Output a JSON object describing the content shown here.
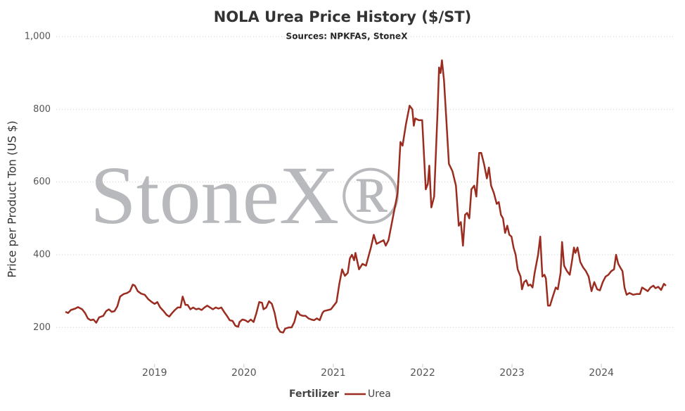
{
  "chart_data": {
    "type": "line",
    "title": "NOLA Urea Price History ($/ST)",
    "subtitle": "Sources: NPKFAS, StoneX",
    "y_label": "Price per Product Ton (US $)",
    "watermark": "StoneX®",
    "legend_title": "Fertilizer",
    "x": [
      2018.002,
      2018.033,
      2018.064,
      2018.112,
      2018.143,
      2018.19,
      2018.222,
      2018.253,
      2018.285,
      2018.316,
      2018.347,
      2018.379,
      2018.426,
      2018.458,
      2018.489,
      2018.52,
      2018.552,
      2018.583,
      2018.615,
      2018.654,
      2018.693,
      2018.725,
      2018.756,
      2018.78,
      2018.811,
      2018.851,
      2018.89,
      2018.929,
      2018.969,
      2019.0,
      2019.031,
      2019.063,
      2019.102,
      2019.134,
      2019.165,
      2019.197,
      2019.228,
      2019.259,
      2019.291,
      2019.314,
      2019.346,
      2019.37,
      2019.401,
      2019.432,
      2019.464,
      2019.495,
      2019.527,
      2019.558,
      2019.59,
      2019.621,
      2019.653,
      2019.684,
      2019.715,
      2019.747,
      2019.778,
      2019.81,
      2019.841,
      2019.873,
      2019.904,
      2019.936,
      2019.951,
      2019.983,
      2020.014,
      2020.046,
      2020.077,
      2020.108,
      2020.14,
      2020.171,
      2020.203,
      2020.219,
      2020.25,
      2020.281,
      2020.313,
      2020.344,
      2020.376,
      2020.407,
      2020.439,
      2020.462,
      2020.502,
      2020.533,
      2020.564,
      2020.596,
      2020.627,
      2020.659,
      2020.69,
      2020.722,
      2020.753,
      2020.785,
      2020.816,
      2020.848,
      2020.879,
      2020.895,
      2020.973,
      2021.036,
      2021.068,
      2021.099,
      2021.13,
      2021.162,
      2021.186,
      2021.209,
      2021.233,
      2021.248,
      2021.288,
      2021.327,
      2021.366,
      2021.421,
      2021.453,
      2021.484,
      2021.524,
      2021.563,
      2021.587,
      2021.618,
      2021.681,
      2021.72,
      2021.752,
      2021.775,
      2021.814,
      2021.854,
      2021.885,
      2021.901,
      2021.917,
      2021.956,
      2021.995,
      2022.035,
      2022.058,
      2022.074,
      2022.097,
      2022.129,
      2022.168,
      2022.184,
      2022.2,
      2022.216,
      2022.239,
      2022.263,
      2022.294,
      2022.333,
      2022.373,
      2022.404,
      2022.428,
      2022.451,
      2022.475,
      2022.498,
      2022.522,
      2022.546,
      2022.577,
      2022.601,
      2022.632,
      2022.656,
      2022.687,
      2022.719,
      2022.742,
      2022.766,
      2022.797,
      2022.829,
      2022.852,
      2022.876,
      2022.899,
      2022.923,
      2022.947,
      2022.97,
      2022.994,
      2023.017,
      2023.041,
      2023.064,
      2023.096,
      2023.112,
      2023.135,
      2023.159,
      2023.182,
      2023.206,
      2023.23,
      2023.253,
      2023.292,
      2023.316,
      2023.34,
      2023.363,
      2023.379,
      2023.403,
      2023.426,
      2023.45,
      2023.489,
      2023.513,
      2023.544,
      2023.56,
      2023.583,
      2023.615,
      2023.646,
      2023.67,
      2023.693,
      2023.709,
      2023.733,
      2023.764,
      2023.796,
      2023.827,
      2023.858,
      2023.89,
      2023.921,
      2023.953,
      2023.984,
      2024.016,
      2024.047,
      2024.079,
      2024.11,
      2024.142,
      2024.165,
      2024.189,
      2024.212,
      2024.236,
      2024.259,
      2024.283,
      2024.314,
      2024.354,
      2024.393,
      2024.432,
      2024.456,
      2024.487,
      2024.519,
      2024.55,
      2024.582,
      2024.605,
      2024.637,
      2024.668,
      2024.7,
      2024.723
    ],
    "series": [
      {
        "name": "Urea",
        "color": "#9b2d20",
        "values": [
          243,
          240,
          248,
          252,
          256,
          250,
          240,
          225,
          220,
          222,
          213,
          228,
          232,
          245,
          250,
          243,
          245,
          258,
          285,
          292,
          295,
          300,
          318,
          315,
          300,
          293,
          290,
          278,
          270,
          265,
          270,
          255,
          245,
          235,
          230,
          240,
          248,
          255,
          255,
          285,
          262,
          262,
          250,
          255,
          250,
          252,
          248,
          255,
          260,
          255,
          250,
          255,
          252,
          255,
          243,
          232,
          220,
          218,
          205,
          202,
          215,
          222,
          220,
          215,
          222,
          215,
          240,
          270,
          268,
          250,
          255,
          272,
          265,
          240,
          200,
          188,
          186,
          197,
          200,
          200,
          215,
          245,
          235,
          232,
          232,
          225,
          222,
          220,
          225,
          220,
          240,
          245,
          250,
          270,
          320,
          360,
          342,
          350,
          390,
          400,
          385,
          405,
          360,
          375,
          370,
          420,
          455,
          430,
          435,
          440,
          425,
          440,
          520,
          570,
          710,
          700,
          760,
          810,
          800,
          755,
          775,
          770,
          770,
          580,
          595,
          645,
          530,
          560,
          800,
          915,
          900,
          935,
          880,
          780,
          650,
          630,
          590,
          480,
          490,
          425,
          510,
          515,
          500,
          580,
          590,
          560,
          680,
          680,
          650,
          610,
          640,
          590,
          570,
          540,
          545,
          510,
          500,
          460,
          480,
          455,
          450,
          420,
          400,
          360,
          340,
          305,
          325,
          330,
          315,
          318,
          310,
          350,
          400,
          450,
          340,
          345,
          335,
          260,
          260,
          280,
          310,
          305,
          350,
          435,
          370,
          355,
          345,
          380,
          420,
          405,
          420,
          380,
          365,
          355,
          340,
          300,
          325,
          305,
          302,
          325,
          340,
          345,
          355,
          360,
          400,
          375,
          365,
          355,
          310,
          290,
          295,
          290,
          292,
          292,
          310,
          305,
          300,
          310,
          315,
          308,
          312,
          303,
          320,
          315
        ]
      }
    ],
    "xlim": [
      2017.9,
      2024.81
    ],
    "xticks": [
      2019,
      2020,
      2021,
      2022,
      2023,
      2024
    ],
    "ylim": [
      100,
      1000
    ],
    "yticks": [
      200,
      400,
      600,
      800,
      {
        "value": 1000,
        "label": "1,000"
      }
    ],
    "grid": true
  }
}
